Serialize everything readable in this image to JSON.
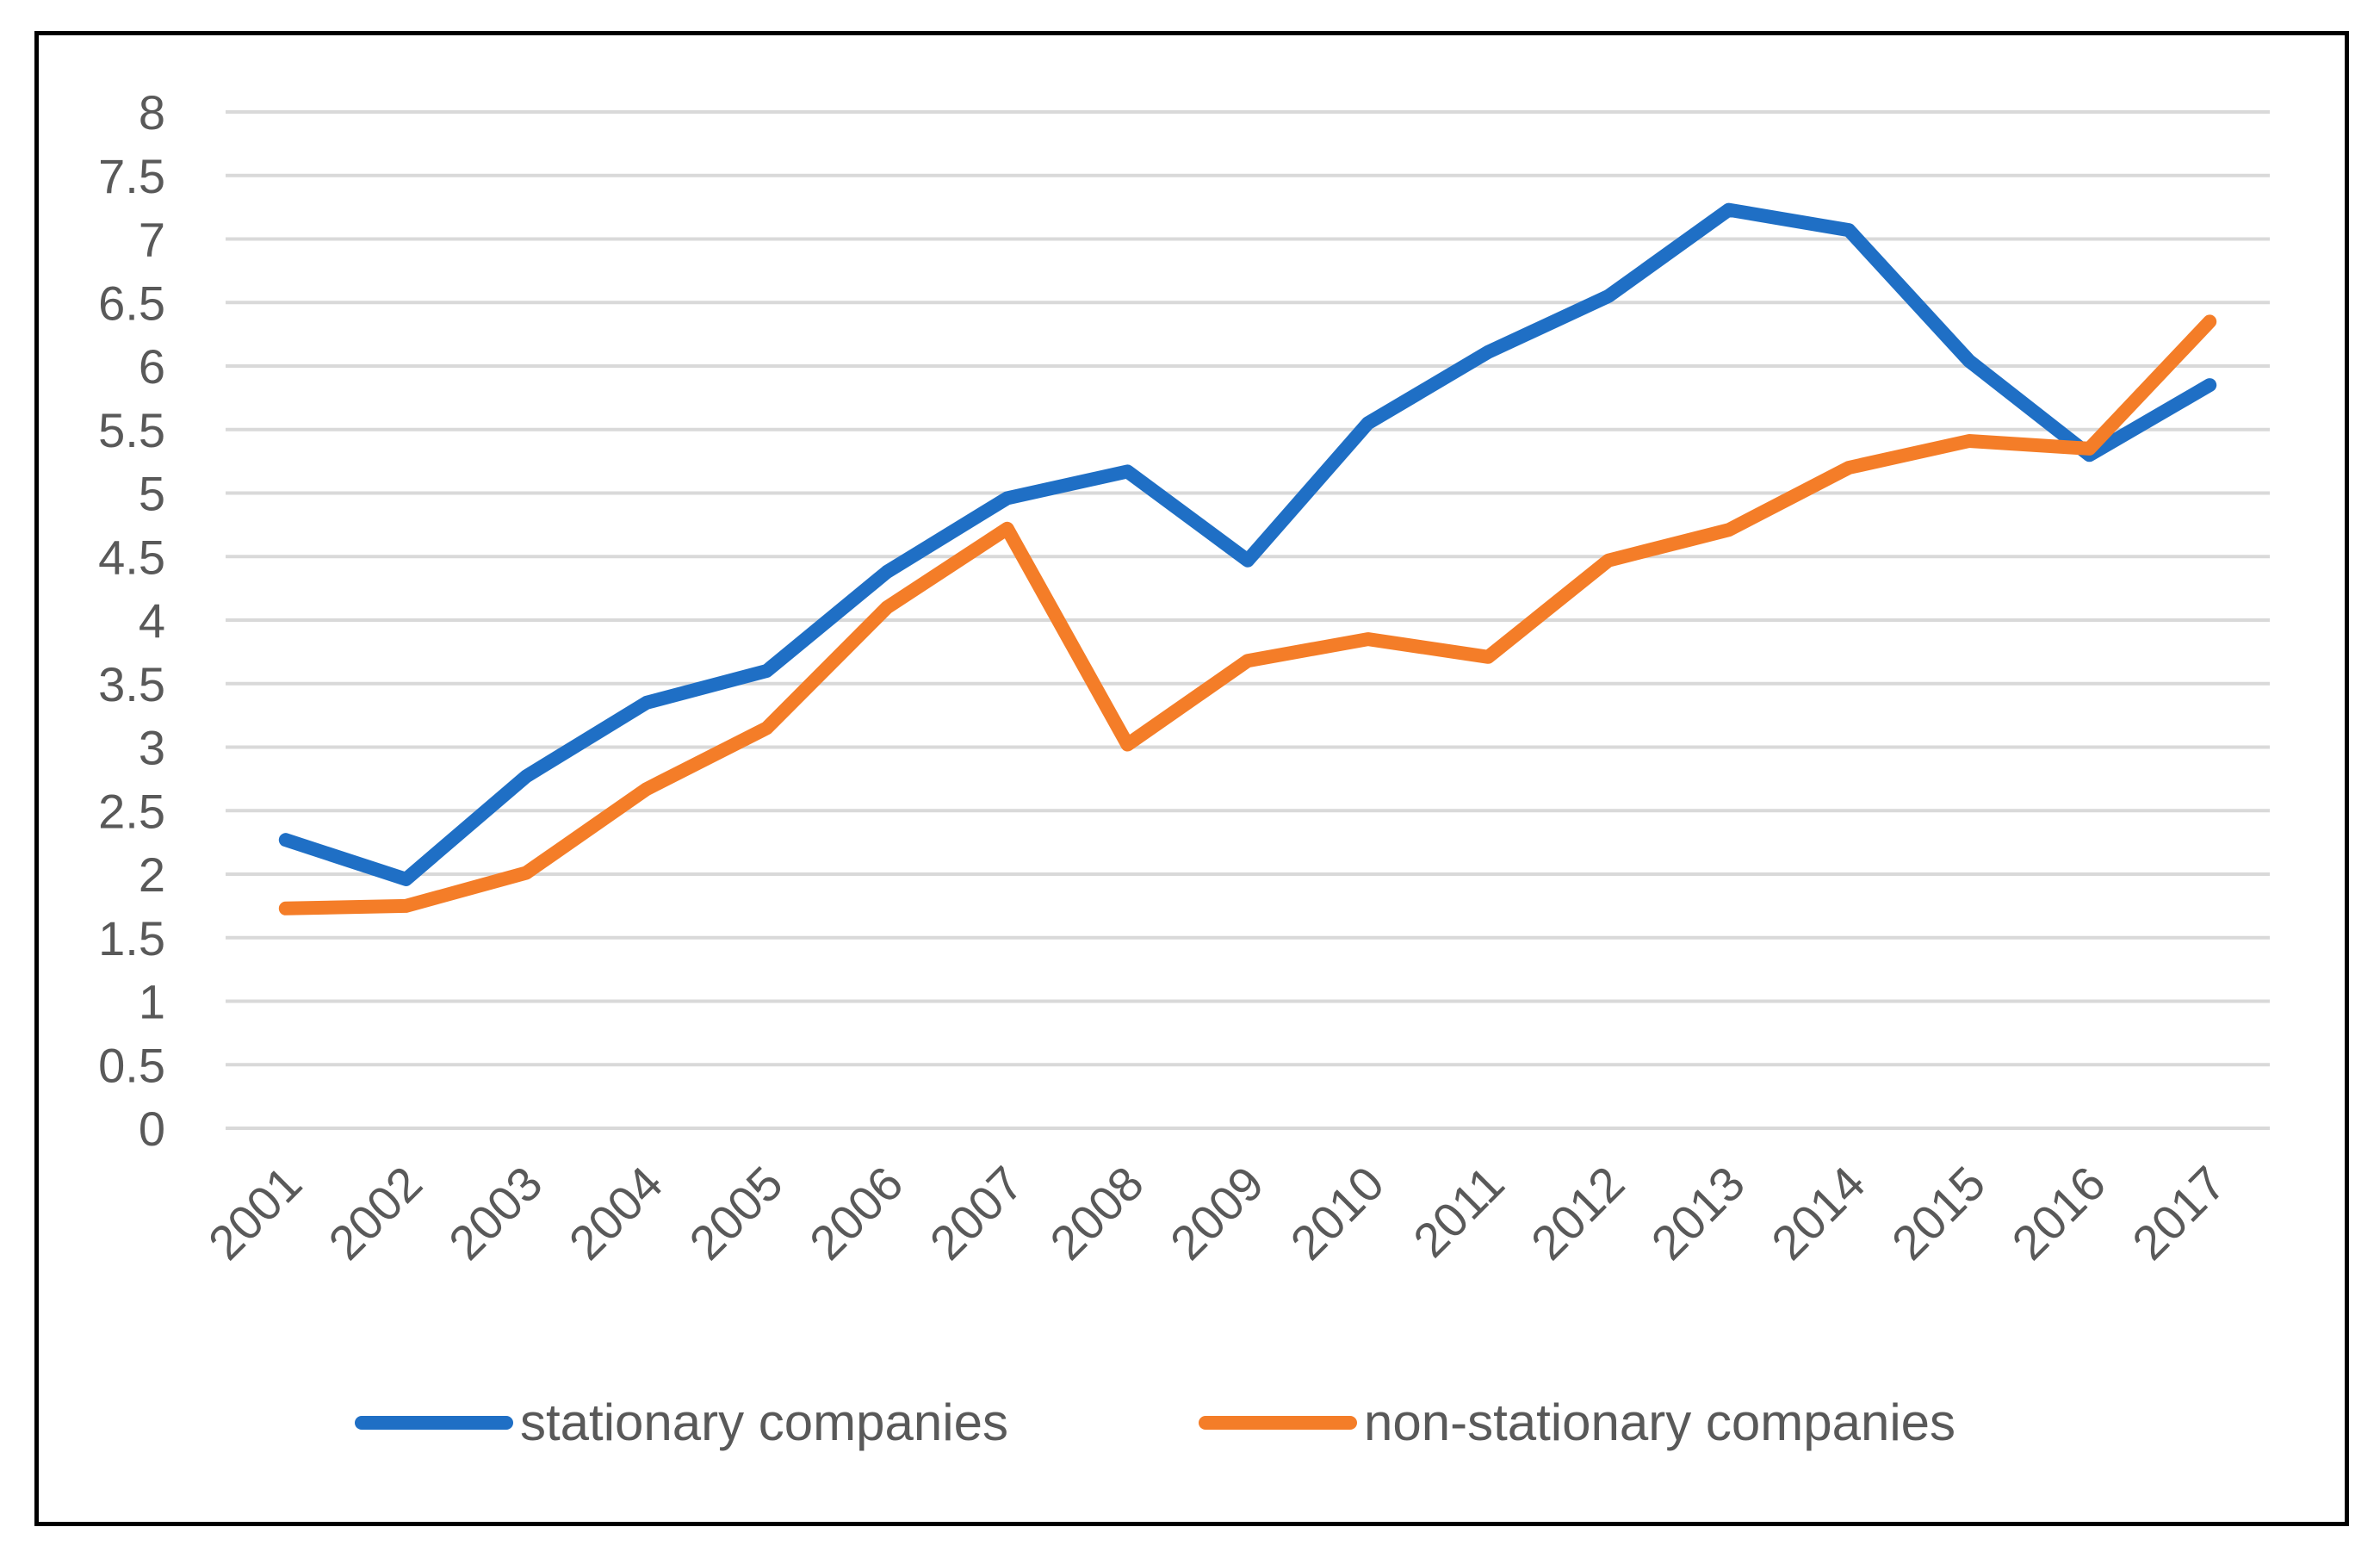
{
  "chart_data": {
    "type": "line",
    "title": "",
    "xlabel": "",
    "ylabel": "",
    "categories": [
      "2001",
      "2002",
      "2003",
      "2004",
      "2005",
      "2006",
      "2007",
      "2008",
      "2009",
      "2010",
      "2011",
      "2012",
      "2013",
      "2014",
      "2015",
      "2016",
      "2017"
    ],
    "y_ticks": [
      "0",
      "0.5",
      "1",
      "1.5",
      "2",
      "2.5",
      "3",
      "3.5",
      "4",
      "4.5",
      "5",
      "5.5",
      "6",
      "6.5",
      "7",
      "7.5",
      "8"
    ],
    "ylim": [
      0,
      8
    ],
    "grid": true,
    "legend_position": "bottom",
    "series": [
      {
        "name": "stationary companies",
        "color": "#1f6fc5",
        "values": [
          2.27,
          1.96,
          2.77,
          3.35,
          3.6,
          4.38,
          4.96,
          5.17,
          4.47,
          5.55,
          6.11,
          6.55,
          7.23,
          7.07,
          6.04,
          5.3,
          5.85
        ]
      },
      {
        "name": "non-stationary companies",
        "color": "#f47d28",
        "values": [
          1.73,
          1.75,
          2.01,
          2.67,
          3.15,
          4.1,
          4.72,
          3.02,
          3.68,
          3.85,
          3.71,
          4.47,
          4.71,
          5.2,
          5.41,
          5.35,
          6.35
        ]
      }
    ]
  }
}
